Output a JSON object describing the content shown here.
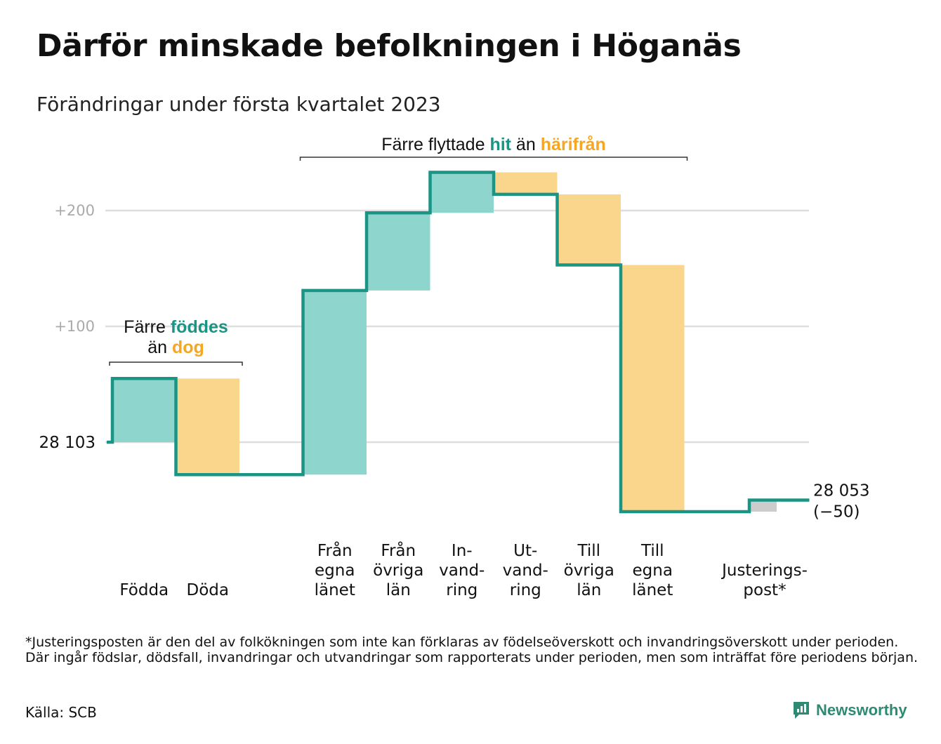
{
  "title": "Därför minskade befolkningen i Höganäs",
  "subtitle": "Förändringar under första kvartalet 2023",
  "footnote": "*Justeringsposten är den del av folkökningen som inte kan förklaras av födelseöverskott och invandringsöverskott under perioden. Där ingår födslar, dödsfall, invandringar och utvandringar som rapporterats under perioden, men som inträffat före periodens början.",
  "source": "Källa: SCB",
  "brand": {
    "name": "Newsworthy",
    "icon": "newsworthy-logo-icon"
  },
  "colors": {
    "increase": "#8dd5cd",
    "decrease": "#fad58c",
    "adjustment": "#cccccc",
    "line": "#1a9484",
    "grid": "#dedede",
    "teal_text": "#1a9484",
    "orange_text": "#f5a623"
  },
  "chart_data": {
    "type": "waterfall",
    "start_value": 28103,
    "start_label": "28 103",
    "end_label": "28 053",
    "end_change_label": "(−50)",
    "y_ticks": [
      {
        "value": 100,
        "label": "+100"
      },
      {
        "value": 200,
        "label": "+200"
      }
    ],
    "y_range": [
      -70,
      240
    ],
    "steps": [
      {
        "lines": [
          "Födda"
        ],
        "change": 55,
        "kind": "increase"
      },
      {
        "lines": [
          "Döda"
        ],
        "change": -83,
        "kind": "decrease"
      },
      {
        "lines": [
          ""
        ],
        "change": 0,
        "kind": "none"
      },
      {
        "lines": [
          "Från",
          "egna",
          "länet"
        ],
        "change": 159,
        "kind": "increase"
      },
      {
        "lines": [
          "Från",
          "övriga",
          "län"
        ],
        "change": 67,
        "kind": "increase"
      },
      {
        "lines": [
          "In-",
          "vand-",
          "ring"
        ],
        "change": 35,
        "kind": "increase"
      },
      {
        "lines": [
          "Ut-",
          "vand-",
          "ring"
        ],
        "change": -19,
        "kind": "decrease"
      },
      {
        "lines": [
          "Till",
          "övriga",
          "län"
        ],
        "change": -61,
        "kind": "decrease"
      },
      {
        "lines": [
          "Till",
          "egna",
          "länet"
        ],
        "change": -213,
        "kind": "decrease"
      },
      {
        "lines": [
          ""
        ],
        "change": 0,
        "kind": "none"
      },
      {
        "lines": [
          "Justerings-",
          "post*"
        ],
        "change": 10,
        "kind": "adjustment"
      }
    ],
    "annotations": [
      {
        "text": "Färre föddes än dog",
        "parts_line1": [
          "Färre ",
          "föddes"
        ],
        "parts_line2": [
          "än ",
          "dog"
        ],
        "steps": [
          0,
          1
        ]
      },
      {
        "text": "Färre flyttade hit än härifrån",
        "parts": [
          "Färre flyttade ",
          "hit",
          " än ",
          "härifrån"
        ],
        "steps": [
          3,
          8
        ]
      }
    ]
  }
}
